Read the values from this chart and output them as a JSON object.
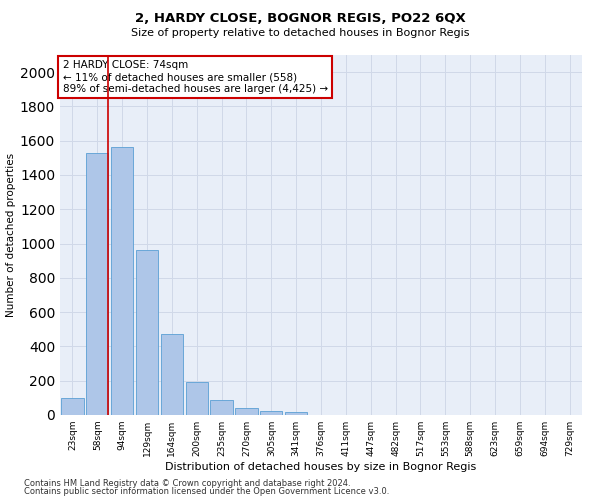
{
  "title1": "2, HARDY CLOSE, BOGNOR REGIS, PO22 6QX",
  "title2": "Size of property relative to detached houses in Bognor Regis",
  "xlabel": "Distribution of detached houses by size in Bognor Regis",
  "ylabel": "Number of detached properties",
  "categories": [
    "23sqm",
    "58sqm",
    "94sqm",
    "129sqm",
    "164sqm",
    "200sqm",
    "235sqm",
    "270sqm",
    "305sqm",
    "341sqm",
    "376sqm",
    "411sqm",
    "447sqm",
    "482sqm",
    "517sqm",
    "553sqm",
    "588sqm",
    "623sqm",
    "659sqm",
    "694sqm",
    "729sqm"
  ],
  "values": [
    100,
    1530,
    1565,
    960,
    475,
    190,
    85,
    40,
    25,
    15,
    0,
    0,
    0,
    0,
    0,
    0,
    0,
    0,
    0,
    0,
    0
  ],
  "bar_color": "#aec6e8",
  "bar_edge_color": "#5a9fd4",
  "vline_color": "#cc0000",
  "vline_x": 1.45,
  "annotation_text": "2 HARDY CLOSE: 74sqm\n← 11% of detached houses are smaller (558)\n89% of semi-detached houses are larger (4,425) →",
  "annotation_box_color": "#ffffff",
  "annotation_box_edge": "#cc0000",
  "ylim": [
    0,
    2100
  ],
  "yticks": [
    0,
    200,
    400,
    600,
    800,
    1000,
    1200,
    1400,
    1600,
    1800,
    2000
  ],
  "grid_color": "#d0d8e8",
  "background_color": "#e8eef8",
  "footer1": "Contains HM Land Registry data © Crown copyright and database right 2024.",
  "footer2": "Contains public sector information licensed under the Open Government Licence v3.0."
}
